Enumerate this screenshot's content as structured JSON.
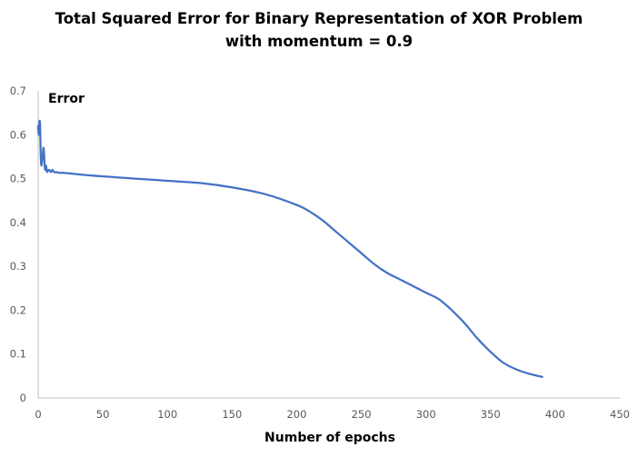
{
  "chart_data": {
    "type": "line",
    "title_line1": "Total Squared Error for Binary Representation of XOR Problem",
    "title_line2": "with momentum = 0.9",
    "xlabel": "Number of epochs",
    "ylabel": "Error",
    "xlim": [
      0,
      450
    ],
    "ylim": [
      0,
      0.7
    ],
    "x_ticks": [
      "0",
      "50",
      "100",
      "150",
      "200",
      "250",
      "300",
      "350",
      "400",
      "450"
    ],
    "y_ticks": [
      "0",
      "0.1",
      "0.2",
      "0.3",
      "0.4",
      "0.5",
      "0.6",
      "0.7"
    ],
    "grid": false,
    "legend": "none",
    "series": [
      {
        "color": "#4472c4",
        "x": [
          0,
          0.5,
          1,
          1.5,
          2,
          2.5,
          3,
          3.5,
          4,
          4.5,
          5,
          5.5,
          6,
          6.5,
          7,
          8,
          9,
          10,
          11,
          12,
          13,
          14,
          15,
          17,
          20,
          30,
          50,
          75,
          100,
          125,
          150,
          175,
          200,
          210,
          220,
          230,
          240,
          250,
          260,
          270,
          280,
          290,
          300,
          310,
          320,
          330,
          340,
          350,
          360,
          370,
          380,
          390
        ],
        "y": [
          0.62,
          0.6,
          0.63,
          0.62,
          0.55,
          0.53,
          0.54,
          0.55,
          0.57,
          0.56,
          0.53,
          0.52,
          0.53,
          0.52,
          0.515,
          0.52,
          0.518,
          0.515,
          0.52,
          0.516,
          0.514,
          0.515,
          0.514,
          0.513,
          0.513,
          0.51,
          0.505,
          0.5,
          0.495,
          0.49,
          0.48,
          0.465,
          0.44,
          0.425,
          0.405,
          0.38,
          0.355,
          0.33,
          0.305,
          0.285,
          0.27,
          0.255,
          0.24,
          0.225,
          0.2,
          0.17,
          0.135,
          0.105,
          0.08,
          0.065,
          0.055,
          0.048
        ]
      }
    ]
  }
}
